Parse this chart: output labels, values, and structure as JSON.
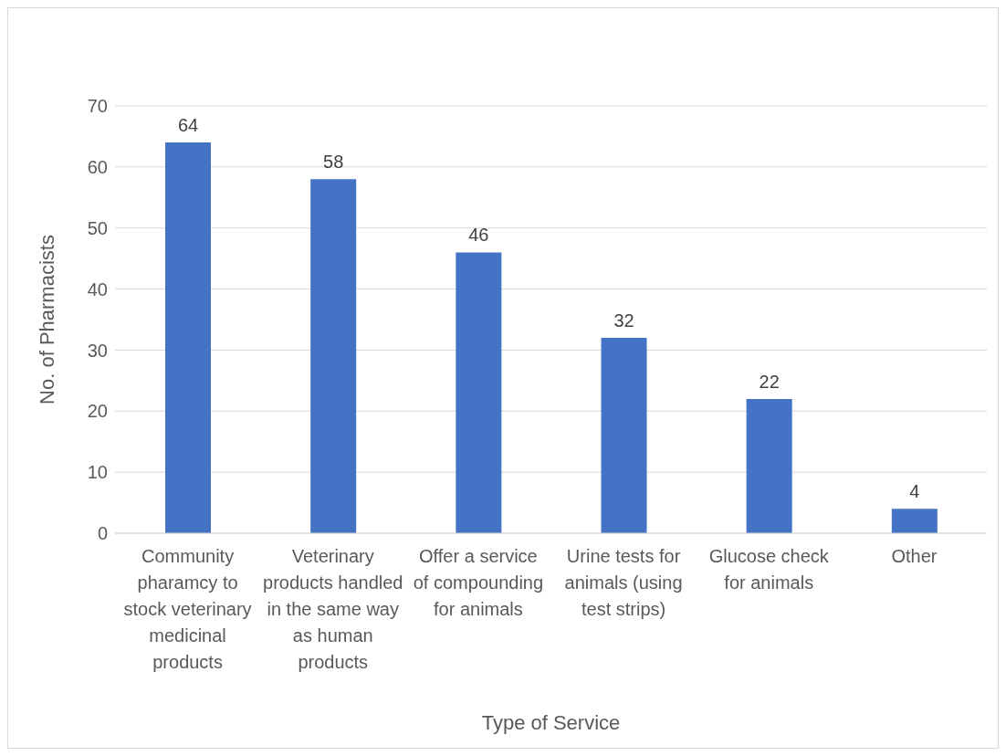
{
  "chart_data": {
    "type": "bar",
    "xlabel": "Type of Service",
    "ylabel": "No. of Pharmacists",
    "categories": [
      "Community pharamcy to stock veterinary medicinal products",
      "Veterinary products handled in the same way as human products",
      "Offer a service of compounding for animals",
      "Urine tests for animals (using test strips)",
      "Glucose check for animals",
      "Other"
    ],
    "values": [
      64,
      58,
      46,
      32,
      22,
      4
    ],
    "color": "#4472c4",
    "ylim": [
      0,
      70
    ],
    "yticks": [
      0,
      10,
      20,
      30,
      40,
      50,
      60,
      70
    ],
    "grid": "y",
    "data_labels": true
  }
}
